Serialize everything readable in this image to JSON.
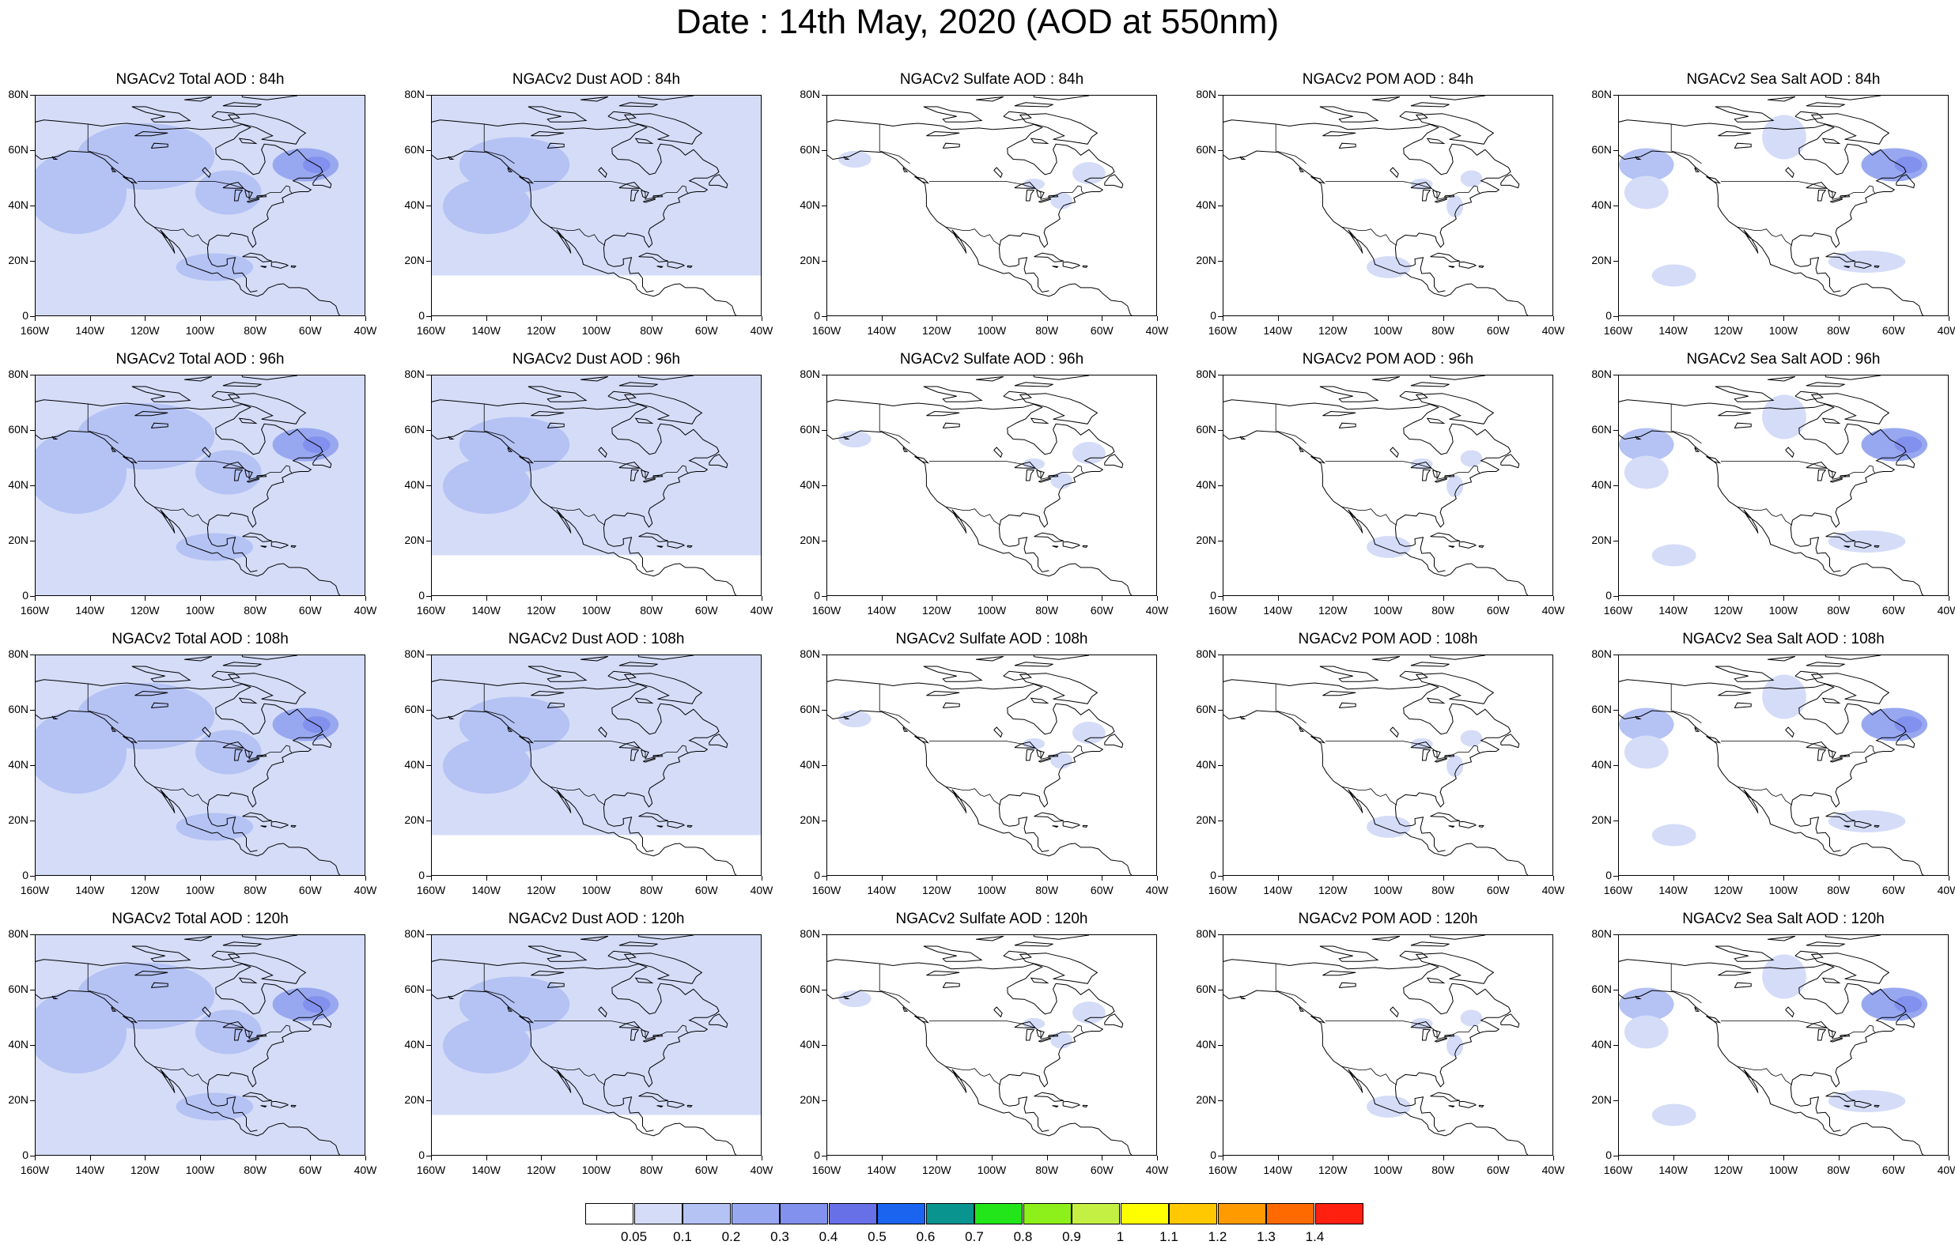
{
  "title": "Date : 14th May, 2020 (AOD at 550nm)",
  "columns": [
    {
      "name": "NGACv2 Total AOD",
      "key": "total"
    },
    {
      "name": "NGACv2 Dust AOD",
      "key": "dust"
    },
    {
      "name": "NGACv2 Sulfate AOD",
      "key": "sulfate"
    },
    {
      "name": "NGACv2 POM AOD",
      "key": "pom"
    },
    {
      "name": "NGACv2 Sea Salt AOD",
      "key": "seasalt"
    }
  ],
  "panel_titles": [
    [
      "NGACv2 Total AOD : 84h",
      "NGACv2 Dust AOD : 84h",
      "NGACv2 Sulfate AOD : 84h",
      "NGACv2 POM AOD : 84h",
      "NGACv2 Sea Salt AOD : 84h"
    ],
    [
      "NGACv2 Total AOD : 96h",
      "NGACv2 Dust AOD : 96h",
      "NGACv2 Sulfate AOD : 96h",
      "NGACv2 POM AOD : 96h",
      "NGACv2 Sea Salt AOD : 96h"
    ],
    [
      "NGACv2 Total AOD : 108h",
      "NGACv2 Dust AOD : 108h",
      "NGACv2 Sulfate AOD : 108h",
      "NGACv2 POM AOD : 108h",
      "NGACv2 Sea Salt AOD : 108h"
    ],
    [
      "NGACv2 Total AOD : 120h",
      "NGACv2 Dust AOD : 120h",
      "NGACv2 Sulfate AOD : 120h",
      "NGACv2 POM AOD : 120h",
      "NGACv2 Sea Salt  AOD : 120h"
    ]
  ],
  "map": {
    "lon_range": [
      -160,
      -40
    ],
    "lat_range": [
      0,
      80
    ],
    "x_ticks": [
      "160W",
      "140W",
      "120W",
      "100W",
      "80W",
      "60W",
      "40W"
    ],
    "y_ticks": [
      "0",
      "20N",
      "40N",
      "60N",
      "80N"
    ]
  },
  "colorbar": {
    "labels": [
      "0.05",
      "0.1",
      "0.2",
      "0.3",
      "0.4",
      "0.5",
      "0.6",
      "0.7",
      "0.8",
      "0.9",
      "1",
      "1.1",
      "1.2",
      "1.3",
      "1.4"
    ],
    "colors": [
      "#ffffff",
      "#d4dcf8",
      "#b4c2f4",
      "#98a8f0",
      "#8290ee",
      "#6870e8",
      "#1a64f0",
      "#0a9490",
      "#22e61a",
      "#8ef01a",
      "#c4f044",
      "#ffff00",
      "#ffc800",
      "#ff9a00",
      "#ff6a00",
      "#ff2010"
    ]
  }
}
